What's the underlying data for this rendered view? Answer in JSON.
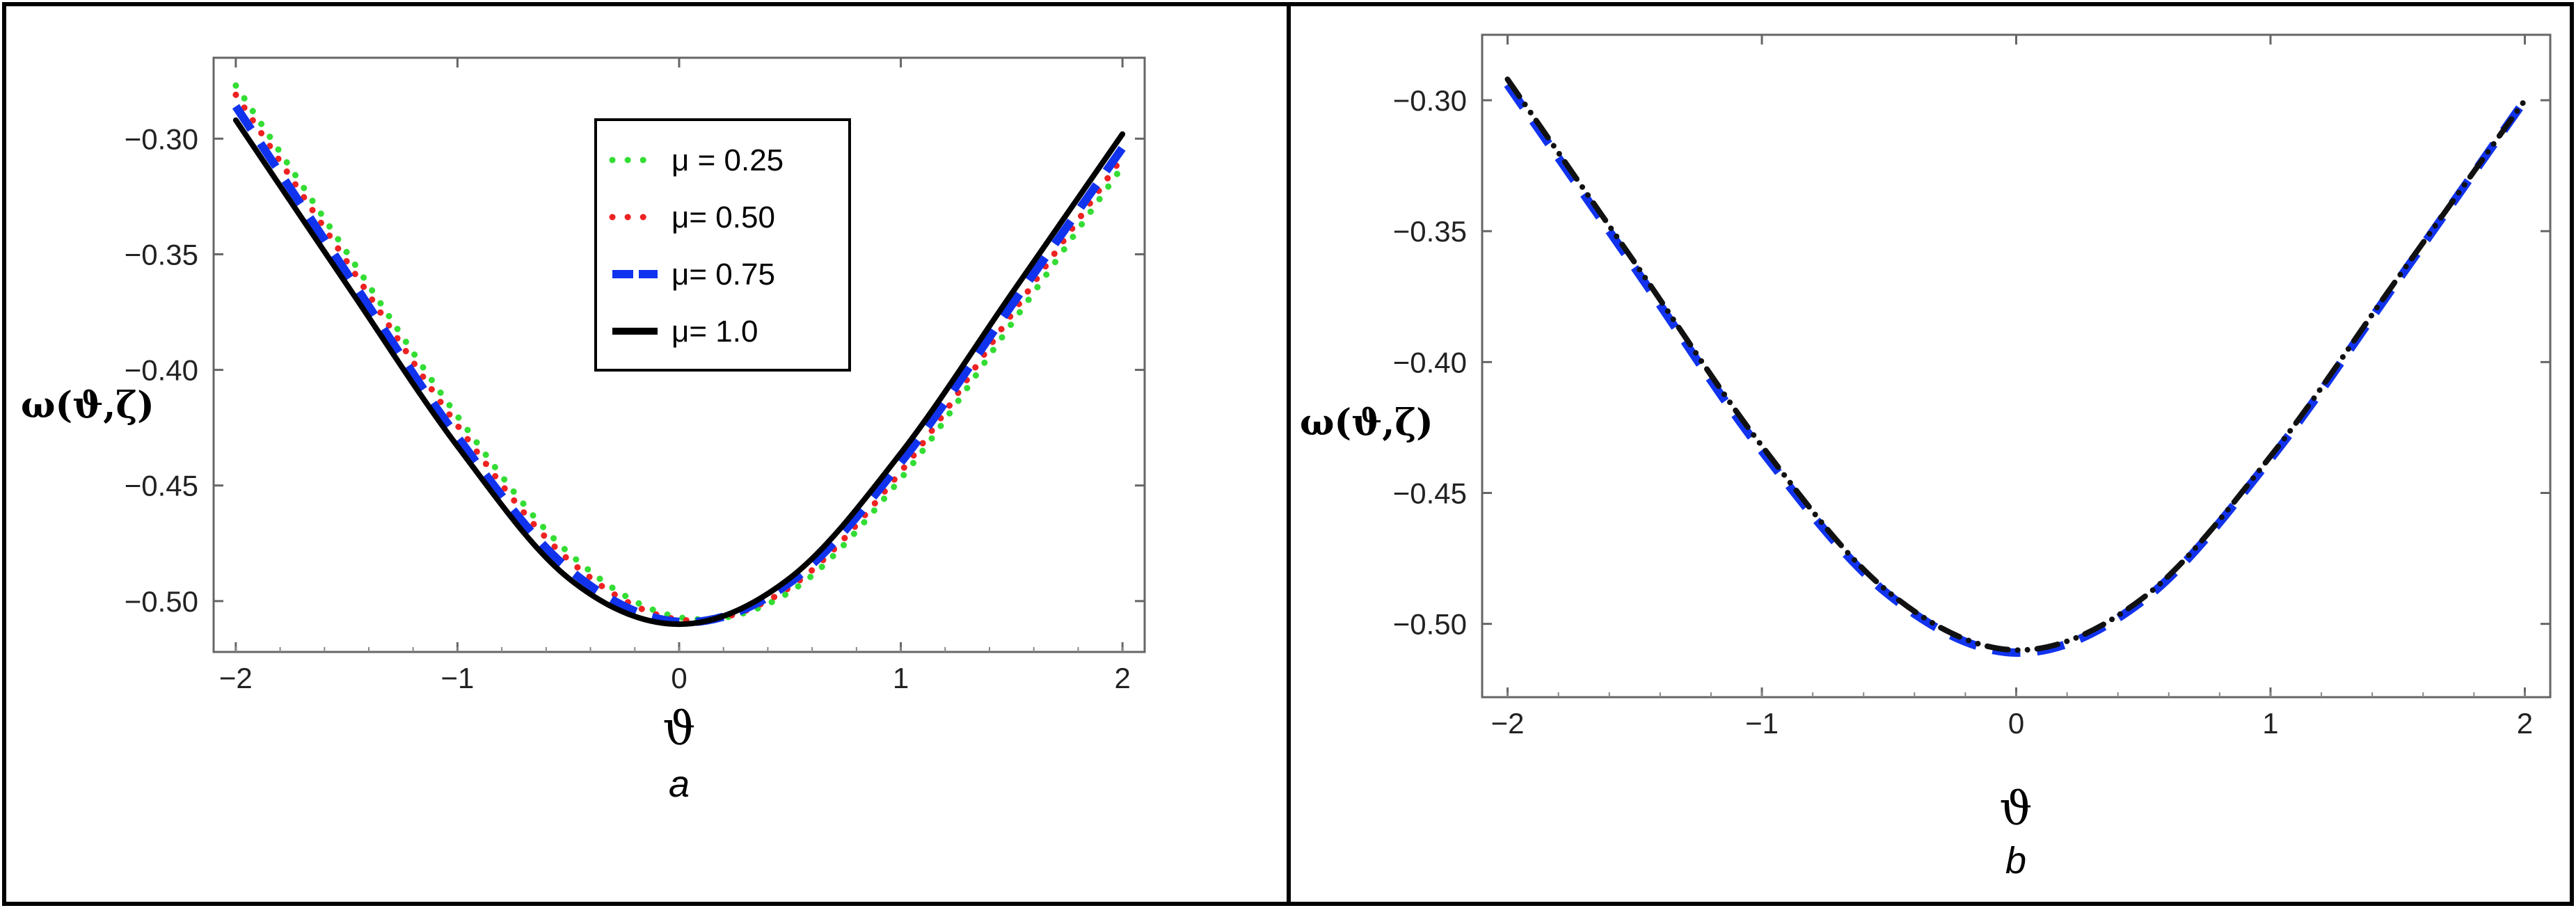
{
  "chart_data": [
    {
      "type": "line",
      "caption": "a",
      "xlabel": "ϑ",
      "ylabel": "ω(ϑ,ζ)",
      "xlim": [
        -2.1,
        2.1
      ],
      "ylim": [
        -0.522,
        -0.265
      ],
      "xticks": [
        -2,
        -1,
        0,
        1,
        2
      ],
      "yticks": [
        -0.3,
        -0.35,
        -0.4,
        -0.45,
        -0.5
      ],
      "xtick_labels": [
        "−2",
        "−1",
        "0",
        "1",
        "2"
      ],
      "ytick_labels": [
        "−0.30",
        "−0.35",
        "−0.40",
        "−0.45",
        "−0.50"
      ],
      "legend_position": "top-center",
      "x": [
        -2,
        -1.5,
        -1,
        -0.5,
        0,
        0.5,
        1,
        1.5,
        2
      ],
      "series": [
        {
          "name": "μ = 0.25",
          "color": "#33dd33",
          "style": "dotted",
          "values": [
            -0.277,
            -0.349,
            -0.42,
            -0.479,
            -0.507,
            -0.496,
            -0.447,
            -0.38,
            -0.312
          ]
        },
        {
          "name": "μ= 0.50",
          "color": "#ee2222",
          "style": "dotted",
          "values": [
            -0.281,
            -0.353,
            -0.424,
            -0.482,
            -0.508,
            -0.494,
            -0.444,
            -0.376,
            -0.308
          ]
        },
        {
          "name": "μ= 0.75",
          "color": "#1133ee",
          "style": "dashed",
          "values": [
            -0.286,
            -0.358,
            -0.429,
            -0.486,
            -0.509,
            -0.492,
            -0.44,
            -0.372,
            -0.304
          ]
        },
        {
          "name": "μ= 1.0",
          "color": "#000000",
          "style": "solid",
          "values": [
            -0.292,
            -0.363,
            -0.433,
            -0.49,
            -0.51,
            -0.49,
            -0.436,
            -0.367,
            -0.298
          ]
        }
      ]
    },
    {
      "type": "line",
      "caption": "b",
      "xlabel": "ϑ",
      "ylabel": "ω(ϑ,ζ)",
      "xlim": [
        -2.1,
        2.1
      ],
      "ylim": [
        -0.528,
        -0.275
      ],
      "xticks": [
        -2,
        -1,
        0,
        1,
        2
      ],
      "yticks": [
        -0.3,
        -0.35,
        -0.4,
        -0.45,
        -0.5
      ],
      "xtick_labels": [
        "−2",
        "−1",
        "0",
        "1",
        "2"
      ],
      "ytick_labels": [
        "−0.30",
        "−0.35",
        "−0.40",
        "−0.45",
        "−0.50"
      ],
      "x": [
        -2,
        -1.5,
        -1,
        -0.5,
        0,
        0.5,
        1,
        1.5,
        2
      ],
      "series": [
        {
          "color": "#1133ee",
          "style": "dashed",
          "values": [
            -0.294,
            -0.364,
            -0.434,
            -0.489,
            -0.511,
            -0.491,
            -0.437,
            -0.369,
            -0.3
          ]
        },
        {
          "color": "#111111",
          "style": "dashdot",
          "values": [
            -0.292,
            -0.362,
            -0.432,
            -0.488,
            -0.51,
            -0.49,
            -0.436,
            -0.368,
            -0.3
          ]
        }
      ]
    }
  ]
}
